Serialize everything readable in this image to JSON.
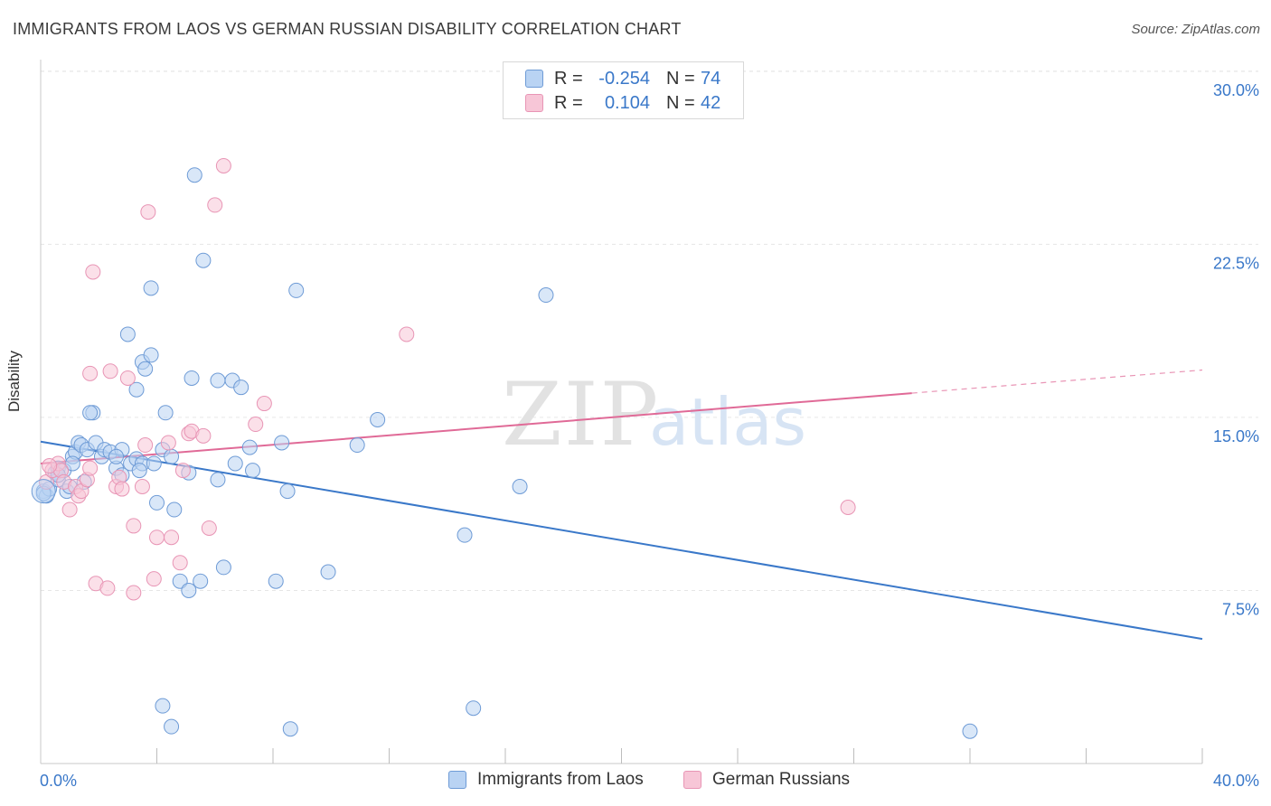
{
  "title": "IMMIGRANTS FROM LAOS VS GERMAN RUSSIAN DISABILITY CORRELATION CHART",
  "source": "Source: ZipAtlas.com",
  "watermark": {
    "zip": "ZIP",
    "atlas": "atlas"
  },
  "colors": {
    "blue": "#3a78c9",
    "blue_fill": "#b9d3f3",
    "blue_stroke": "#6e9bd6",
    "pink": "#e06a97",
    "pink_fill": "#f7c6d7",
    "pink_stroke": "#e895b5",
    "grid": "#e6e6e6",
    "axis_text": "#3a78c9"
  },
  "stats": [
    {
      "r_label": "R =",
      "r_value": "-0.254",
      "n_label": "N =",
      "n_value": "74"
    },
    {
      "r_label": "R =",
      "r_value": "0.104",
      "n_label": "N =",
      "n_value": "42"
    }
  ],
  "legend": {
    "series1": "Immigrants from Laos",
    "series2": "German Russians"
  },
  "chart_data": {
    "type": "scatter",
    "title": "IMMIGRANTS FROM LAOS VS GERMAN RUSSIAN DISABILITY CORRELATION CHART",
    "xlabel": "",
    "ylabel": "Disability",
    "xlim": [
      0,
      40
    ],
    "ylim": [
      0,
      30.5
    ],
    "x_tick_labels": [
      {
        "x": 0,
        "label": "0.0%"
      },
      {
        "x": 40,
        "label": "40.0%"
      }
    ],
    "y_ticks": [
      {
        "y": 7.5,
        "label": "7.5%"
      },
      {
        "y": 15.0,
        "label": "15.0%"
      },
      {
        "y": 22.5,
        "label": "22.5%"
      },
      {
        "y": 30.0,
        "label": "30.0%"
      }
    ],
    "x_minor_ticks": [
      4,
      8,
      12,
      16,
      20,
      24,
      28,
      32,
      36,
      40
    ],
    "grid": true,
    "series": [
      {
        "name": "Immigrants from Laos",
        "color": "#3a78c9",
        "trend": {
          "x0": 0,
          "y0": 13.95,
          "x1": 40,
          "y1": 5.4
        },
        "points": [
          [
            0.1,
            11.8
          ],
          [
            0.2,
            11.6
          ],
          [
            0.3,
            11.9
          ],
          [
            0.5,
            12.6
          ],
          [
            0.6,
            12.3
          ],
          [
            0.6,
            12.8
          ],
          [
            0.8,
            12.7
          ],
          [
            0.9,
            11.8
          ],
          [
            1.0,
            12.0
          ],
          [
            1.1,
            13.3
          ],
          [
            1.2,
            13.5
          ],
          [
            1.3,
            13.9
          ],
          [
            1.4,
            13.8
          ],
          [
            1.5,
            12.2
          ],
          [
            1.6,
            13.6
          ],
          [
            1.9,
            13.9
          ],
          [
            1.8,
            15.2
          ],
          [
            2.1,
            13.3
          ],
          [
            2.2,
            13.6
          ],
          [
            2.4,
            13.5
          ],
          [
            2.6,
            12.8
          ],
          [
            2.8,
            12.5
          ],
          [
            2.8,
            13.6
          ],
          [
            3.1,
            13.0
          ],
          [
            3.3,
            13.2
          ],
          [
            3.5,
            13.0
          ],
          [
            3.3,
            16.2
          ],
          [
            3.4,
            12.7
          ],
          [
            3.5,
            17.4
          ],
          [
            3.6,
            17.1
          ],
          [
            1.7,
            15.2
          ],
          [
            3.8,
            17.7
          ],
          [
            3.0,
            18.6
          ],
          [
            3.8,
            20.6
          ],
          [
            3.9,
            13.0
          ],
          [
            4.0,
            11.3
          ],
          [
            4.2,
            13.6
          ],
          [
            4.3,
            15.2
          ],
          [
            4.6,
            11.0
          ],
          [
            4.8,
            7.9
          ],
          [
            5.1,
            7.5
          ],
          [
            5.2,
            16.7
          ],
          [
            5.3,
            25.5
          ],
          [
            5.5,
            7.9
          ],
          [
            5.6,
            21.8
          ],
          [
            6.1,
            16.6
          ],
          [
            6.1,
            12.3
          ],
          [
            6.3,
            8.5
          ],
          [
            6.6,
            16.6
          ],
          [
            6.7,
            13.0
          ],
          [
            6.9,
            16.3
          ],
          [
            7.2,
            13.7
          ],
          [
            7.3,
            12.7
          ],
          [
            8.3,
            13.9
          ],
          [
            8.5,
            11.8
          ],
          [
            8.8,
            20.5
          ],
          [
            9.9,
            8.3
          ],
          [
            10.9,
            13.8
          ],
          [
            11.6,
            14.9
          ],
          [
            14.6,
            9.9
          ],
          [
            16.5,
            12.0
          ],
          [
            17.4,
            20.3
          ],
          [
            4.2,
            2.5
          ],
          [
            4.5,
            1.6
          ],
          [
            8.6,
            1.5
          ],
          [
            14.9,
            2.4
          ],
          [
            32.0,
            1.4
          ],
          [
            0.1,
            11.7
          ],
          [
            5.1,
            12.6
          ],
          [
            1.1,
            13.0
          ],
          [
            8.1,
            7.9
          ],
          [
            0.6,
            12.5
          ],
          [
            2.6,
            13.3
          ],
          [
            4.5,
            13.3
          ]
        ]
      },
      {
        "name": "German Russians",
        "color": "#e06a97",
        "trend": {
          "x0": 0,
          "y0": 13.0,
          "x1": 30.0,
          "y1": 16.05,
          "dash_x1": 40,
          "dash_y1": 17.05
        },
        "points": [
          [
            0.2,
            12.2
          ],
          [
            0.4,
            12.7
          ],
          [
            0.6,
            13.0
          ],
          [
            0.7,
            12.7
          ],
          [
            0.8,
            12.2
          ],
          [
            1.0,
            11.0
          ],
          [
            1.2,
            12.0
          ],
          [
            1.3,
            11.6
          ],
          [
            1.4,
            11.8
          ],
          [
            1.6,
            12.3
          ],
          [
            1.7,
            12.8
          ],
          [
            1.7,
            16.9
          ],
          [
            1.8,
            21.3
          ],
          [
            1.9,
            7.8
          ],
          [
            2.3,
            7.6
          ],
          [
            2.4,
            17.0
          ],
          [
            2.6,
            12.0
          ],
          [
            2.7,
            12.4
          ],
          [
            2.8,
            11.9
          ],
          [
            3.0,
            16.7
          ],
          [
            3.2,
            10.3
          ],
          [
            3.2,
            7.4
          ],
          [
            3.5,
            12.0
          ],
          [
            3.6,
            13.8
          ],
          [
            3.7,
            23.9
          ],
          [
            3.9,
            8.0
          ],
          [
            4.0,
            9.8
          ],
          [
            4.4,
            13.9
          ],
          [
            4.5,
            9.8
          ],
          [
            4.8,
            8.7
          ],
          [
            4.9,
            12.7
          ],
          [
            5.1,
            14.3
          ],
          [
            5.2,
            14.4
          ],
          [
            5.6,
            14.2
          ],
          [
            5.8,
            10.2
          ],
          [
            6.3,
            25.9
          ],
          [
            6.0,
            24.2
          ],
          [
            7.4,
            14.7
          ],
          [
            7.7,
            15.6
          ],
          [
            12.6,
            18.6
          ],
          [
            27.8,
            11.1
          ],
          [
            0.3,
            12.9
          ]
        ]
      }
    ]
  }
}
